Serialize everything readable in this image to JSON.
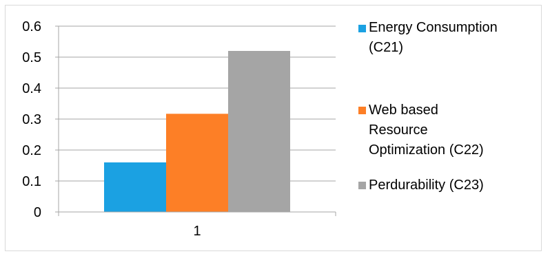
{
  "chart_data": {
    "type": "bar",
    "categories": [
      "1"
    ],
    "series": [
      {
        "name": "Energy Consumption (C21)",
        "values": [
          0.16
        ],
        "color": "#1ba1e2"
      },
      {
        "name": "Web based Resource Optimization (C22)",
        "values": [
          0.317
        ],
        "color": "#fd7f26"
      },
      {
        "name": "Perdurability (C23)",
        "values": [
          0.52
        ],
        "color": "#a5a5a5"
      }
    ],
    "ylim": [
      0,
      0.6
    ],
    "yticks": [
      "0",
      "0.1",
      "0.2",
      "0.3",
      "0.4",
      "0.5",
      "0.6"
    ],
    "grid": true,
    "legend_position": "right",
    "title": "",
    "xlabel": "",
    "ylabel": ""
  },
  "legend": {
    "items": [
      {
        "label": "Energy Consumption\n(C21)"
      },
      {
        "label": " Web based\nResource\nOptimization (C22)"
      },
      {
        "label": " Perdurability (C23)"
      }
    ]
  }
}
